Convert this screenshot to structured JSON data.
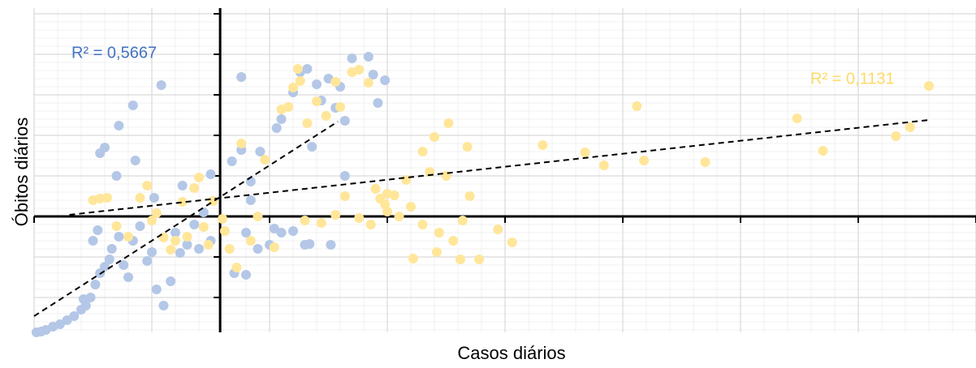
{
  "chart_data": {
    "type": "scatter",
    "xlabel": "Casos diários",
    "ylabel": "Óbitos diários",
    "xlim": [
      0,
      40
    ],
    "ylim": [
      -14.3,
      25.7
    ],
    "xticks": [
      0,
      5,
      10,
      15,
      20,
      25,
      30,
      35,
      40
    ],
    "yticks": [
      -10,
      -5,
      0,
      5,
      10,
      15,
      20,
      25
    ],
    "y_axis_at_x": 7.9,
    "x_axis_at_y": 0,
    "grid": true,
    "minor_grid": true,
    "series": [
      {
        "color": "#b4c7e7",
        "label_color": "#4472c4",
        "r2_label": "R² = 0,5667",
        "x": [
          0.1,
          0.3,
          0.5,
          0.8,
          1.1,
          1.4,
          1.7,
          2,
          2.2,
          2.1,
          2.4,
          2.6,
          2.8,
          3,
          3.2,
          2.5,
          2.7,
          3.3,
          3.6,
          3.8,
          4,
          4.2,
          4.5,
          4.8,
          5,
          5.2,
          5.5,
          5.8,
          6,
          6.2,
          6.5,
          6.8,
          7,
          7.5,
          3.5,
          3,
          2.8,
          3.6,
          4.3,
          4.2,
          5.4,
          5.1,
          6.3,
          7.2,
          7.5,
          8.4,
          8.8,
          9.2,
          9,
          9.5,
          10,
          10.5,
          11,
          11.5,
          8.5,
          9,
          9.6,
          10.3,
          10.5,
          11,
          11.3,
          11.6,
          12,
          12.5,
          12.2,
          13,
          13.5,
          14.2,
          14.9,
          14.4,
          13.2,
          12.8,
          14.6,
          11.8,
          8.8,
          9.2,
          11.7,
          12.6,
          13.2,
          10.2
        ],
        "y": [
          -14.3,
          -14.2,
          -14,
          -13.6,
          -13.3,
          -12.8,
          -12.3,
          -11.5,
          -11,
          -10.2,
          -10,
          -8.4,
          -7,
          -6.2,
          -5.3,
          -3,
          -1.7,
          -4,
          -2.5,
          -6,
          -7.5,
          -3,
          -1.2,
          -5.5,
          -4.4,
          -9,
          -11,
          -8,
          -2,
          -4.5,
          -3.5,
          -1,
          -4,
          -3,
          5,
          8.5,
          7.8,
          11.2,
          6.9,
          13.7,
          16.2,
          2.3,
          3.8,
          0.5,
          5.2,
          6.8,
          8.2,
          4.3,
          -2,
          -4,
          -3.5,
          -2,
          -1.8,
          -3.5,
          -7,
          -7.2,
          8,
          10.9,
          12,
          15.3,
          17.8,
          18.2,
          16.3,
          17,
          14.3,
          16,
          19.5,
          19.7,
          16.8,
          17.5,
          11.8,
          13.4,
          14,
          8.6,
          17.2,
          2,
          -3.4,
          -3.5,
          5,
          -1.5
        ],
        "trendline": {
          "x": [
            0,
            12.9
          ],
          "y": [
            -12.3,
            11.7
          ]
        }
      },
      {
        "color": "#ffe699",
        "label_color": "#ffd966",
        "r2_label": "R² = 0,1131",
        "x": [
          2.5,
          2.8,
          3.1,
          3.5,
          4,
          4.5,
          4.8,
          5,
          5.2,
          5.5,
          5.8,
          6,
          6.3,
          6.5,
          6.8,
          7,
          7.2,
          7.4,
          7.6,
          8,
          8.3,
          8.6,
          8.8,
          8.1,
          9.2,
          9.5,
          9.8,
          10.2,
          10.5,
          10.8,
          11,
          11.3,
          11.6,
          12,
          12.4,
          12.8,
          13,
          11.5,
          12.2,
          12.8,
          13.2,
          13.8,
          14.3,
          14.7,
          15,
          15.3,
          15.5,
          16,
          16.5,
          17.2,
          17.5,
          17.8,
          18.2,
          18.5,
          19.7,
          20.3,
          18.1,
          18.9,
          17.1,
          16.1,
          15,
          14.5,
          16.5,
          17,
          13.8,
          25.6,
          32.4,
          33.5,
          38,
          28.5,
          25.9,
          24.2,
          21.6,
          23.4,
          18.4,
          17.6,
          36.6,
          37.2,
          15.8,
          16.8,
          14.9,
          13.5,
          14.2,
          11.2
        ],
        "y": [
          2,
          2.2,
          2.3,
          -1.2,
          -2.5,
          2.3,
          3.8,
          -0.5,
          0.4,
          -2.6,
          -4.1,
          -3,
          1.8,
          -2.5,
          3.5,
          4.8,
          -1.3,
          -3.5,
          1.9,
          -0.3,
          -4,
          -6.3,
          9,
          -1.8,
          -3,
          0,
          7,
          -3.8,
          13.2,
          13.5,
          15.9,
          16.7,
          11.5,
          14.2,
          12.4,
          16.6,
          13.5,
          -0.5,
          -0.8,
          0.2,
          2.5,
          -0.2,
          -1,
          2.2,
          0.6,
          2.6,
          0,
          1.2,
          -1,
          -2,
          5,
          -3,
          -0.5,
          2.5,
          -1.6,
          -3.2,
          -5.3,
          -5.3,
          -4.4,
          -5.2,
          2.8,
          3.4,
          8,
          9.8,
          18.1,
          13.6,
          12.1,
          8.1,
          16.1,
          6.7,
          6.9,
          6.3,
          8.8,
          7.9,
          8.6,
          11.5,
          9.9,
          11,
          4.5,
          5.5,
          1.5,
          17.8,
          16.5,
          18.2
        ],
        "trendline": {
          "x": [
            1.5,
            38
          ],
          "y": [
            0.2,
            11.9
          ]
        }
      }
    ]
  }
}
